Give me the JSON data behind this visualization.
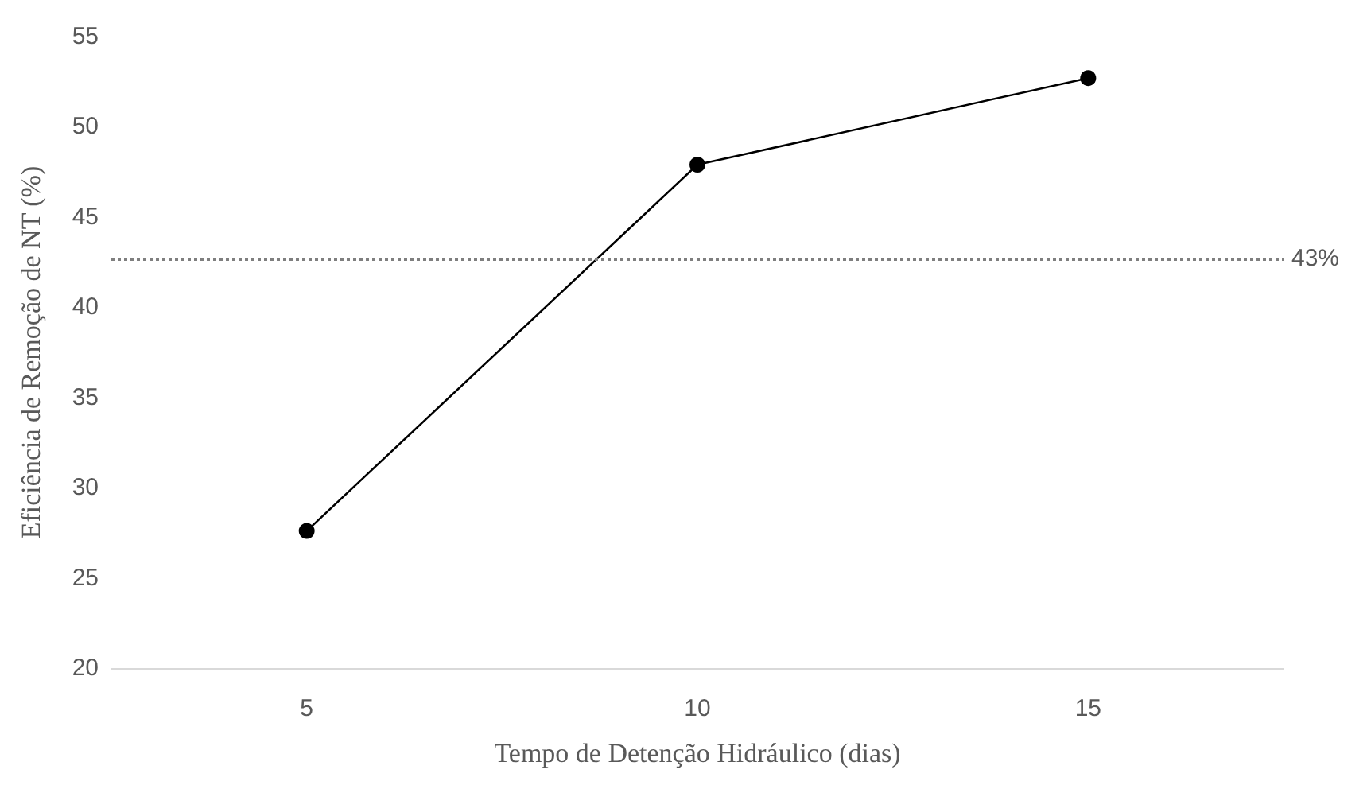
{
  "chart_data": {
    "type": "line",
    "xlabel": "Tempo de Detenção Hidráulico (dias)",
    "ylabel": "Eficiência de Remoção de NT (%)",
    "categories": [
      "5",
      "10",
      "15"
    ],
    "series": [
      {
        "color": "#000000",
        "values": [
          27.6,
          47.9,
          52.7
        ]
      }
    ],
    "ylim": [
      20,
      55
    ],
    "yticks": [
      20,
      25,
      30,
      35,
      40,
      45,
      50,
      55
    ],
    "ref_lines": [
      {
        "axis": "y",
        "value": 42.7,
        "label": "43%",
        "color": "#7f7f7f",
        "line_style": "dotted"
      }
    ],
    "grid": false,
    "marker": "circle",
    "line_style": "solid"
  }
}
